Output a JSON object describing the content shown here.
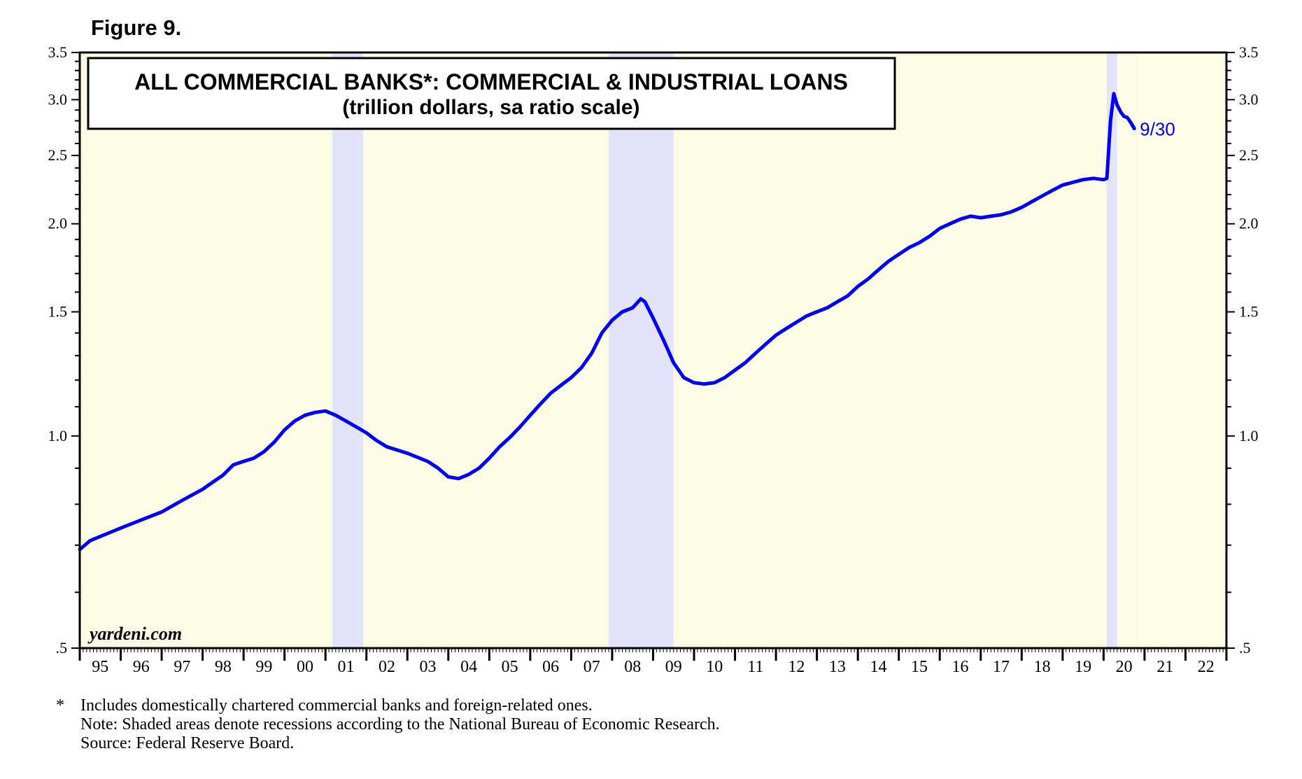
{
  "figure_label": "Figure 9.",
  "footnotes": {
    "star": "*",
    "lines": [
      "Includes domestically chartered commercial banks and foreign-related ones.",
      "Note: Shaded areas denote recessions according to the National Bureau of Economic Research.",
      "Source: Federal Reserve Board."
    ]
  },
  "colors": {
    "plot_background": "#fcfbe6",
    "recession_shade": "#e3e3fa",
    "forecast_shade": "#fdfde8",
    "series_line": "#0000ee",
    "frame": "#000000"
  },
  "chart_data": {
    "type": "line",
    "title": "ALL COMMERCIAL BANKS*: COMMERCIAL & INDUSTRIAL LOANS",
    "subtitle": "(trillion dollars, sa ratio scale)",
    "watermark": "yardeni.com",
    "y_scale": "log",
    "ylim": [
      0.5,
      3.5
    ],
    "xlim": [
      1995.0,
      2023.0
    ],
    "y_ticks": [
      {
        "value": 0.5,
        "label": ".5"
      },
      {
        "value": 1.0,
        "label": "1.0"
      },
      {
        "value": 1.5,
        "label": "1.5"
      },
      {
        "value": 2.0,
        "label": "2.0"
      },
      {
        "value": 2.5,
        "label": "2.5"
      },
      {
        "value": 3.0,
        "label": "3.0"
      },
      {
        "value": 3.5,
        "label": "3.5"
      }
    ],
    "y_minor_ticks": [
      0.6,
      0.7,
      0.8,
      0.9,
      1.1,
      1.2,
      1.3,
      1.4,
      1.6,
      1.7,
      1.8,
      1.9,
      2.1,
      2.2,
      2.3,
      2.4,
      2.6,
      2.7,
      2.8,
      2.9,
      3.1,
      3.2,
      3.3,
      3.4
    ],
    "x_tick_labels": [
      "95",
      "96",
      "97",
      "98",
      "99",
      "00",
      "01",
      "02",
      "03",
      "04",
      "05",
      "06",
      "07",
      "08",
      "09",
      "10",
      "11",
      "12",
      "13",
      "14",
      "15",
      "16",
      "17",
      "18",
      "19",
      "20",
      "21",
      "22"
    ],
    "recessions": [
      {
        "start": 2001.17,
        "end": 2001.92
      },
      {
        "start": 2007.92,
        "end": 2009.5
      },
      {
        "start": 2020.08,
        "end": 2020.33
      }
    ],
    "forecast_region_start": 2020.9,
    "last_point_label": "9/30",
    "series": [
      {
        "x": [
          1995.0,
          1995.25,
          1995.5,
          1995.75,
          1996.0,
          1996.5,
          1997.0,
          1997.5,
          1998.0,
          1998.25,
          1998.5,
          1998.75,
          1999.0,
          1999.25,
          1999.5,
          1999.75,
          2000.0,
          2000.25,
          2000.5,
          2000.75,
          2001.0,
          2001.25,
          2001.5,
          2001.75,
          2002.0,
          2002.25,
          2002.5,
          2002.75,
          2003.0,
          2003.5,
          2003.75,
          2004.0,
          2004.25,
          2004.5,
          2004.75,
          2005.0,
          2005.25,
          2005.5,
          2005.75,
          2006.0,
          2006.25,
          2006.5,
          2006.75,
          2007.0,
          2007.25,
          2007.5,
          2007.75,
          2008.0,
          2008.25,
          2008.5,
          2008.7,
          2008.8,
          2009.0,
          2009.25,
          2009.5,
          2009.75,
          2010.0,
          2010.25,
          2010.5,
          2010.75,
          2011.0,
          2011.25,
          2011.5,
          2011.75,
          2012.0,
          2012.25,
          2012.5,
          2012.75,
          2013.0,
          2013.25,
          2013.5,
          2013.75,
          2014.0,
          2014.25,
          2014.5,
          2014.75,
          2015.0,
          2015.25,
          2015.5,
          2015.75,
          2016.0,
          2016.25,
          2016.5,
          2016.75,
          2017.0,
          2017.25,
          2017.5,
          2017.75,
          2018.0,
          2018.25,
          2018.5,
          2018.75,
          2019.0,
          2019.25,
          2019.5,
          2019.75,
          2020.0,
          2020.08,
          2020.17,
          2020.25,
          2020.33,
          2020.42,
          2020.5,
          2020.58,
          2020.67,
          2020.75
        ],
        "values": [
          0.69,
          0.71,
          0.72,
          0.73,
          0.74,
          0.76,
          0.78,
          0.81,
          0.84,
          0.86,
          0.88,
          0.91,
          0.92,
          0.93,
          0.95,
          0.98,
          1.02,
          1.05,
          1.07,
          1.08,
          1.085,
          1.07,
          1.05,
          1.03,
          1.01,
          0.985,
          0.965,
          0.955,
          0.945,
          0.92,
          0.9,
          0.875,
          0.87,
          0.882,
          0.9,
          0.93,
          0.965,
          0.995,
          1.03,
          1.07,
          1.11,
          1.15,
          1.18,
          1.21,
          1.25,
          1.31,
          1.4,
          1.46,
          1.5,
          1.52,
          1.565,
          1.55,
          1.47,
          1.37,
          1.27,
          1.21,
          1.19,
          1.185,
          1.19,
          1.21,
          1.24,
          1.27,
          1.31,
          1.35,
          1.39,
          1.42,
          1.45,
          1.48,
          1.5,
          1.52,
          1.55,
          1.58,
          1.63,
          1.67,
          1.72,
          1.77,
          1.81,
          1.85,
          1.88,
          1.92,
          1.97,
          2.0,
          2.03,
          2.05,
          2.04,
          2.05,
          2.06,
          2.08,
          2.11,
          2.15,
          2.19,
          2.23,
          2.27,
          2.29,
          2.31,
          2.32,
          2.31,
          2.32,
          2.8,
          3.06,
          2.95,
          2.88,
          2.84,
          2.83,
          2.78,
          2.73
        ]
      }
    ]
  }
}
